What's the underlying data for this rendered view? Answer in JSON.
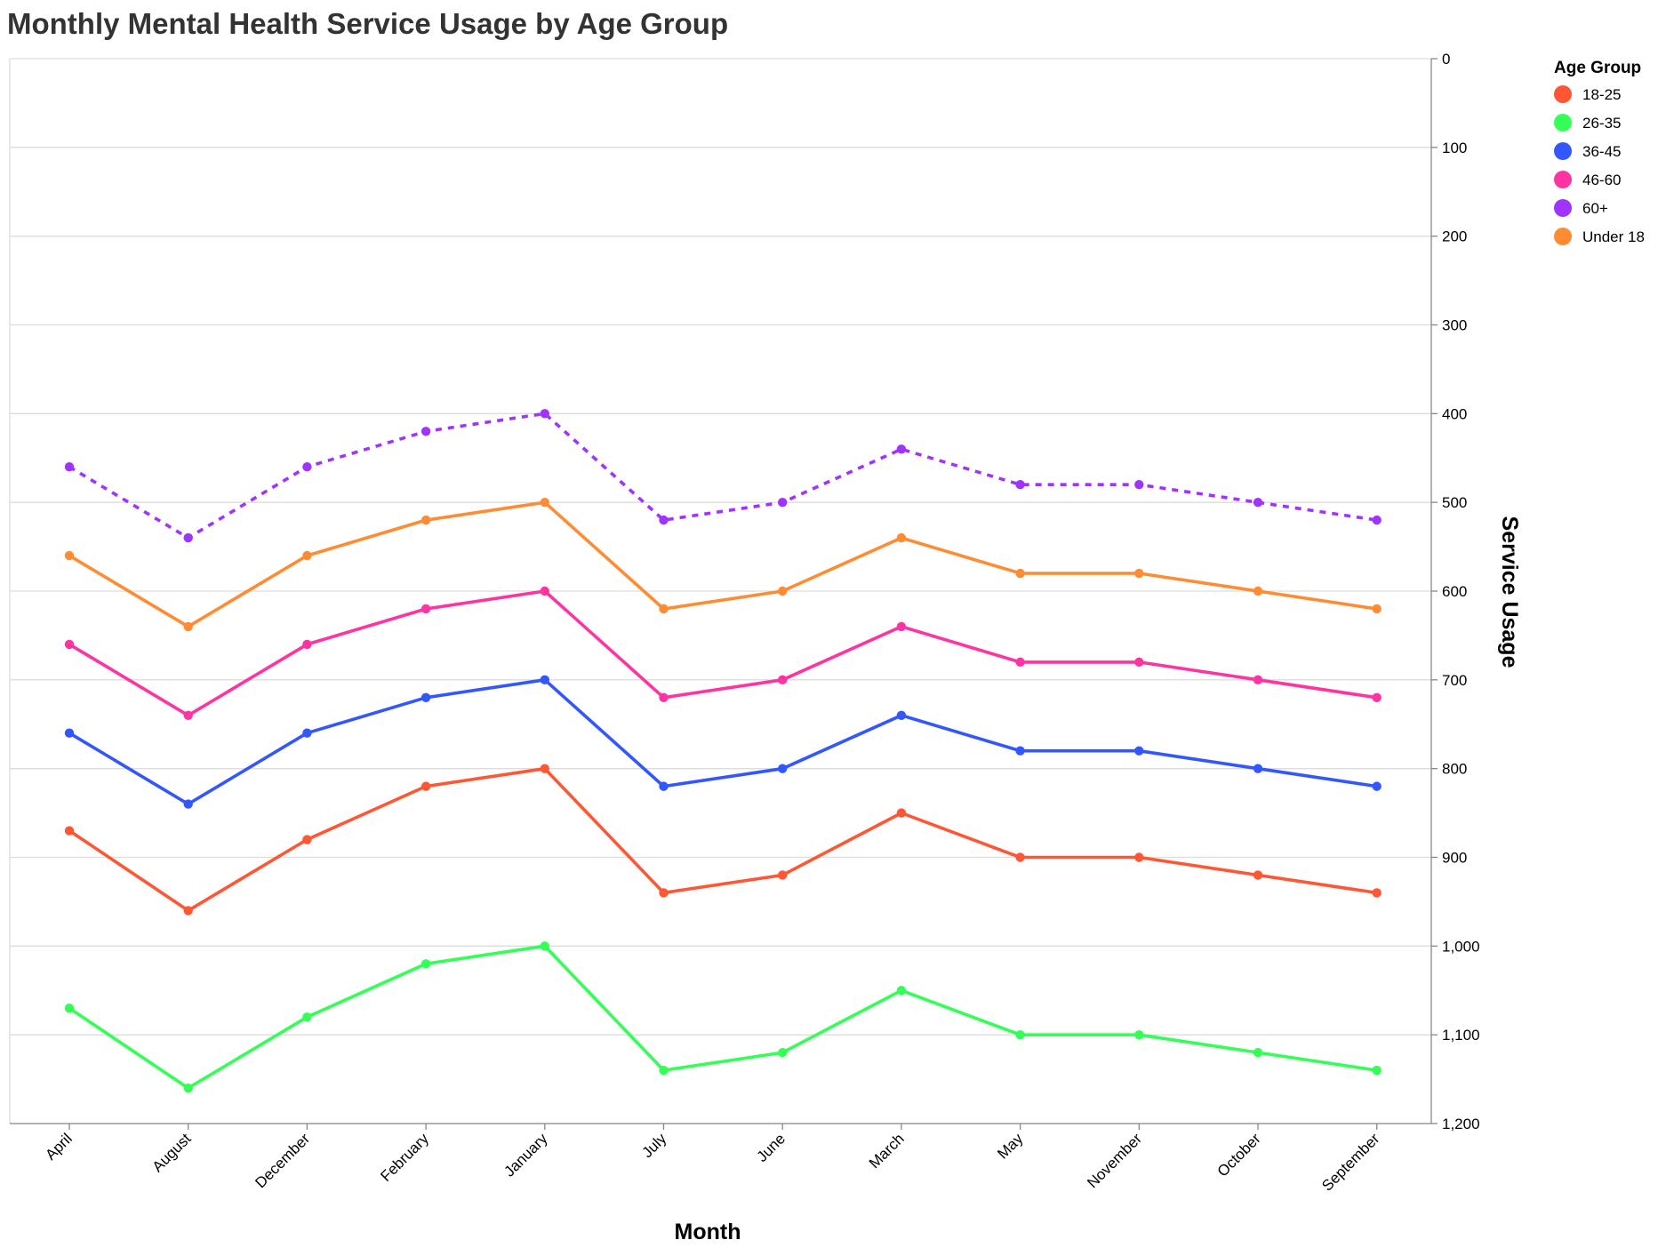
{
  "chart_data": {
    "type": "line",
    "title": "Monthly Mental Health Service Usage by Age Group",
    "xlabel": "Month",
    "ylabel": "Service Usage",
    "ylim": [
      0,
      1200
    ],
    "y_reversed": true,
    "y_axis_side": "right",
    "y_ticks": [
      "0",
      "100",
      "200",
      "300",
      "400",
      "500",
      "600",
      "700",
      "800",
      "900",
      "1,000",
      "1,100",
      "1,200"
    ],
    "grid": true,
    "legend_title": "Age Group",
    "legend_position": "top-right",
    "categories": [
      "April",
      "August",
      "December",
      "February",
      "January",
      "July",
      "June",
      "March",
      "May",
      "November",
      "October",
      "September"
    ],
    "series": [
      {
        "name": "18-25",
        "color": "#ff5733",
        "dashed": false,
        "values": [
          870,
          960,
          880,
          820,
          800,
          940,
          920,
          850,
          900,
          900,
          920,
          940
        ]
      },
      {
        "name": "26-35",
        "color": "#33ff57",
        "dashed": false,
        "values": [
          1070,
          1160,
          1080,
          1020,
          1000,
          1140,
          1120,
          1050,
          1100,
          1100,
          1120,
          1140
        ]
      },
      {
        "name": "36-45",
        "color": "#3357ff",
        "dashed": false,
        "values": [
          760,
          840,
          760,
          720,
          700,
          820,
          800,
          740,
          780,
          780,
          800,
          820
        ]
      },
      {
        "name": "46-60",
        "color": "#ff33a1",
        "dashed": false,
        "values": [
          660,
          740,
          660,
          620,
          600,
          720,
          700,
          640,
          680,
          680,
          700,
          720
        ]
      },
      {
        "name": "60+",
        "color": "#a133ff",
        "dashed": true,
        "values": [
          460,
          540,
          460,
          420,
          400,
          520,
          500,
          440,
          480,
          480,
          500,
          520
        ]
      },
      {
        "name": "Under 18",
        "color": "#ff8c33",
        "dashed": false,
        "values": [
          560,
          640,
          560,
          520,
          500,
          620,
          600,
          540,
          580,
          580,
          600,
          620
        ]
      }
    ]
  }
}
